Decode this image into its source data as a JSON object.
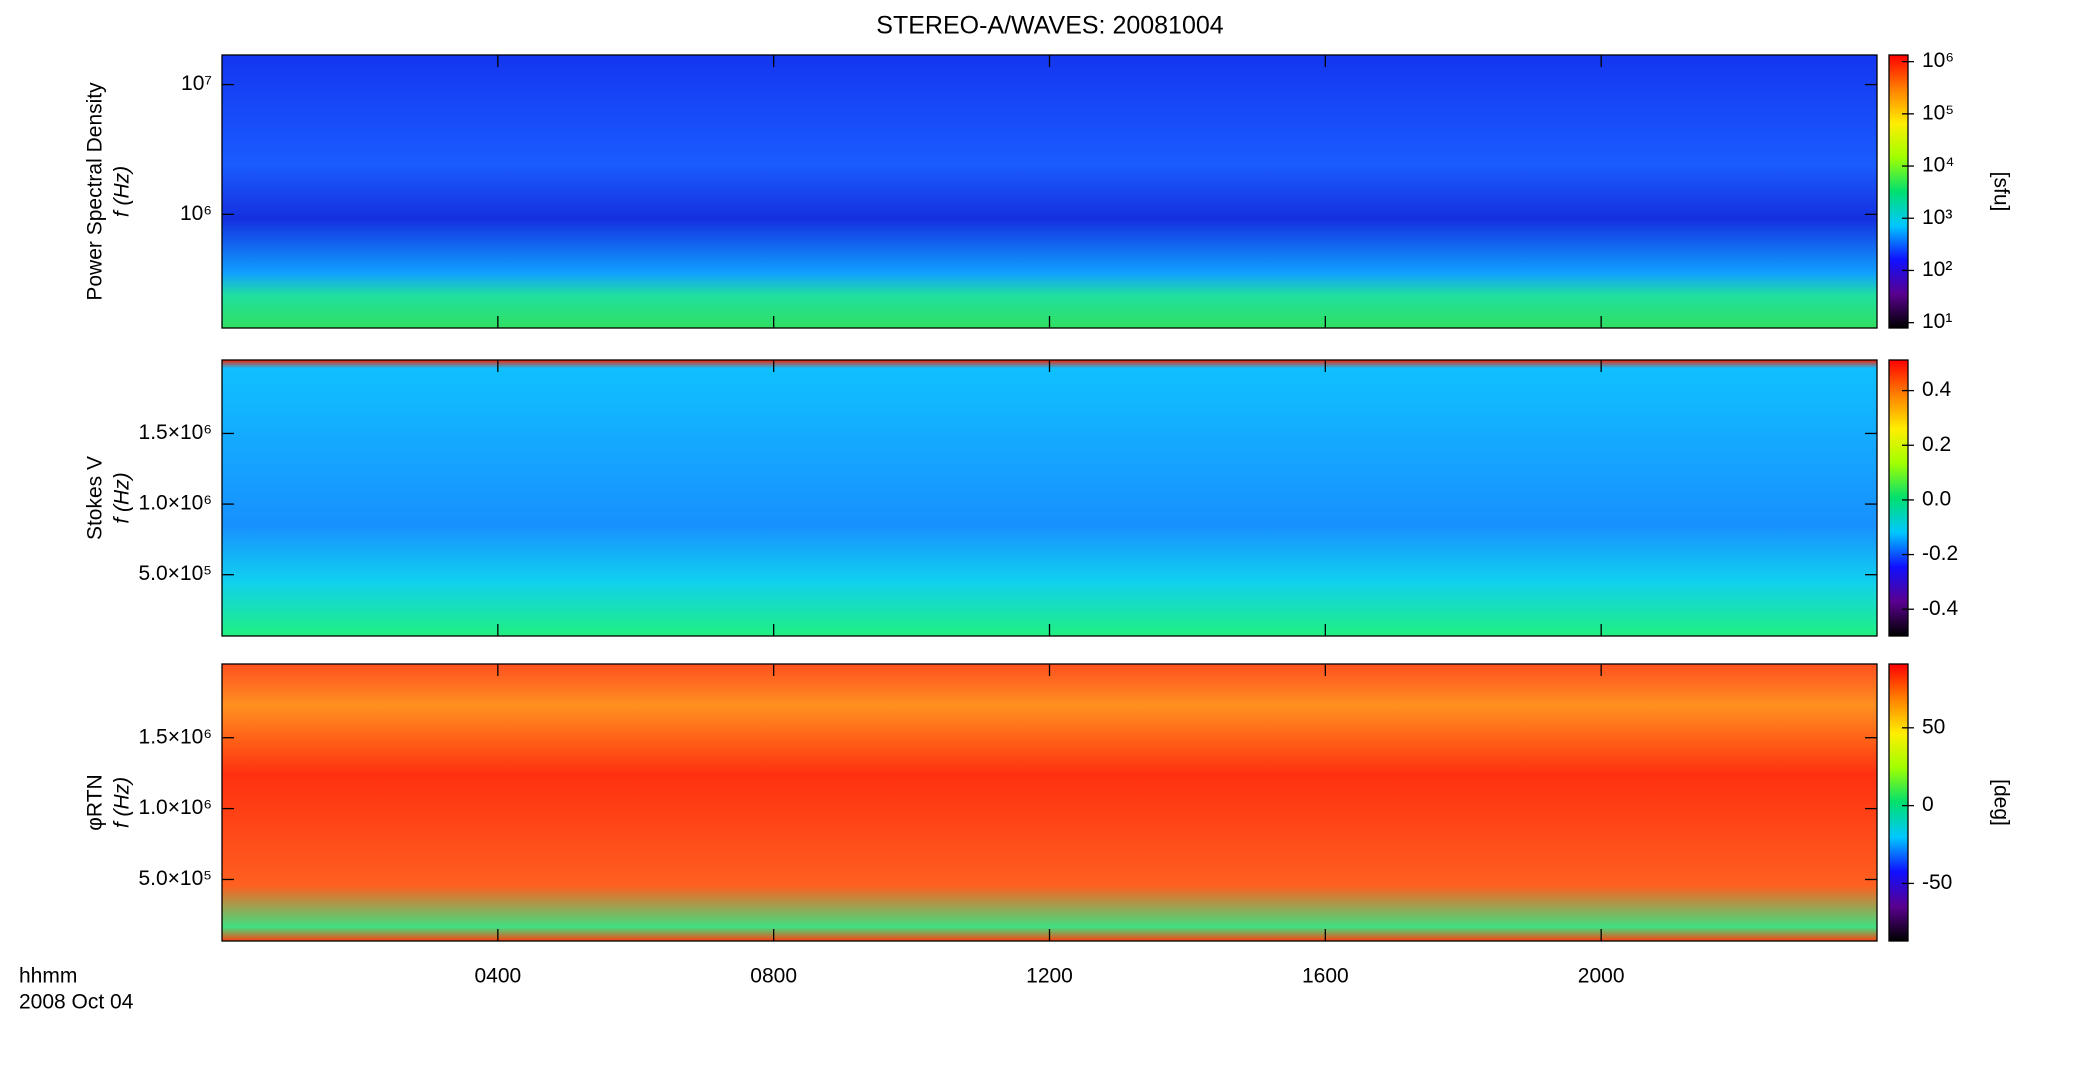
{
  "chart_data": [
    {
      "type": "heatmap",
      "title": "STEREO-A/WAVES: 20081004",
      "ylabel": [
        "Power Spectral Density",
        "f (Hz)"
      ],
      "ylog": true,
      "ylim": [
        133000,
        16900000
      ],
      "yticks": [
        {
          "value": 1000000,
          "label": "10⁶"
        },
        {
          "value": 10000000,
          "label": "10⁷"
        }
      ],
      "xlim": [
        0,
        24
      ],
      "colorbar": {
        "label": "[sfu]",
        "log": true,
        "ylim": [
          7.9,
          1340000
        ],
        "yticks": [
          {
            "value": 10,
            "label": "10¹"
          },
          {
            "value": 100,
            "label": "10²"
          },
          {
            "value": 1000,
            "label": "10³"
          },
          {
            "value": 10000,
            "label": "10⁴"
          },
          {
            "value": 100000,
            "label": "10⁵"
          },
          {
            "value": 1000000,
            "label": "10⁶"
          }
        ],
        "colors": [
          "#000000",
          "#5a0090",
          "#1010ff",
          "#00c8ff",
          "#00e070",
          "#a0ff00",
          "#ffee00",
          "#ff8000",
          "#ff0000"
        ]
      }
    },
    {
      "type": "heatmap",
      "ylabel": [
        "Stokes V",
        "f (Hz)"
      ],
      "ylog": false,
      "ylim": [
        66000,
        2020000
      ],
      "yticks": [
        {
          "value": 500000,
          "label": "5.0×10⁵"
        },
        {
          "value": 1000000,
          "label": "1.0×10⁶"
        },
        {
          "value": 1500000,
          "label": "1.5×10⁶"
        }
      ],
      "xlim": [
        0,
        24
      ],
      "colorbar": {
        "log": false,
        "ylim": [
          -0.498,
          0.512
        ],
        "yticks": [
          -0.4,
          -0.2,
          {
            "value": 0,
            "label": "0.0"
          },
          0.2,
          0.4
        ],
        "colors": [
          "#000000",
          "#5a0090",
          "#1010ff",
          "#00c8ff",
          "#00e070",
          "#a0ff00",
          "#ffee00",
          "#ff8000",
          "#ff0000"
        ]
      }
    },
    {
      "type": "heatmap",
      "ylabel": [
        "φRTN",
        "f (Hz)"
      ],
      "ylog": false,
      "ylim": [
        66000,
        2020000
      ],
      "yticks": [
        {
          "value": 500000,
          "label": "5.0×10⁵"
        },
        {
          "value": 1000000,
          "label": "1.0×10⁶"
        },
        {
          "value": 1500000,
          "label": "1.5×10⁶"
        }
      ],
      "xlim": [
        0,
        24
      ],
      "xticks": [
        {
          "value": 4,
          "label": "0400"
        },
        {
          "value": 8,
          "label": "0800"
        },
        {
          "value": 12,
          "label": "1200"
        },
        {
          "value": 16,
          "label": "1600"
        },
        {
          "value": 20,
          "label": "2000"
        }
      ],
      "xlabel": [
        "hhmm",
        "2008 Oct 04"
      ],
      "colorbar": {
        "label": "[deg]",
        "log": false,
        "ylim": [
          -87,
          91
        ],
        "yticks": [
          -50,
          0,
          50
        ],
        "colors": [
          "#000000",
          "#5a0090",
          "#1010ff",
          "#00c8ff",
          "#00e070",
          "#a0ff00",
          "#ffee00",
          "#ff8000",
          "#ff0000"
        ]
      }
    }
  ]
}
